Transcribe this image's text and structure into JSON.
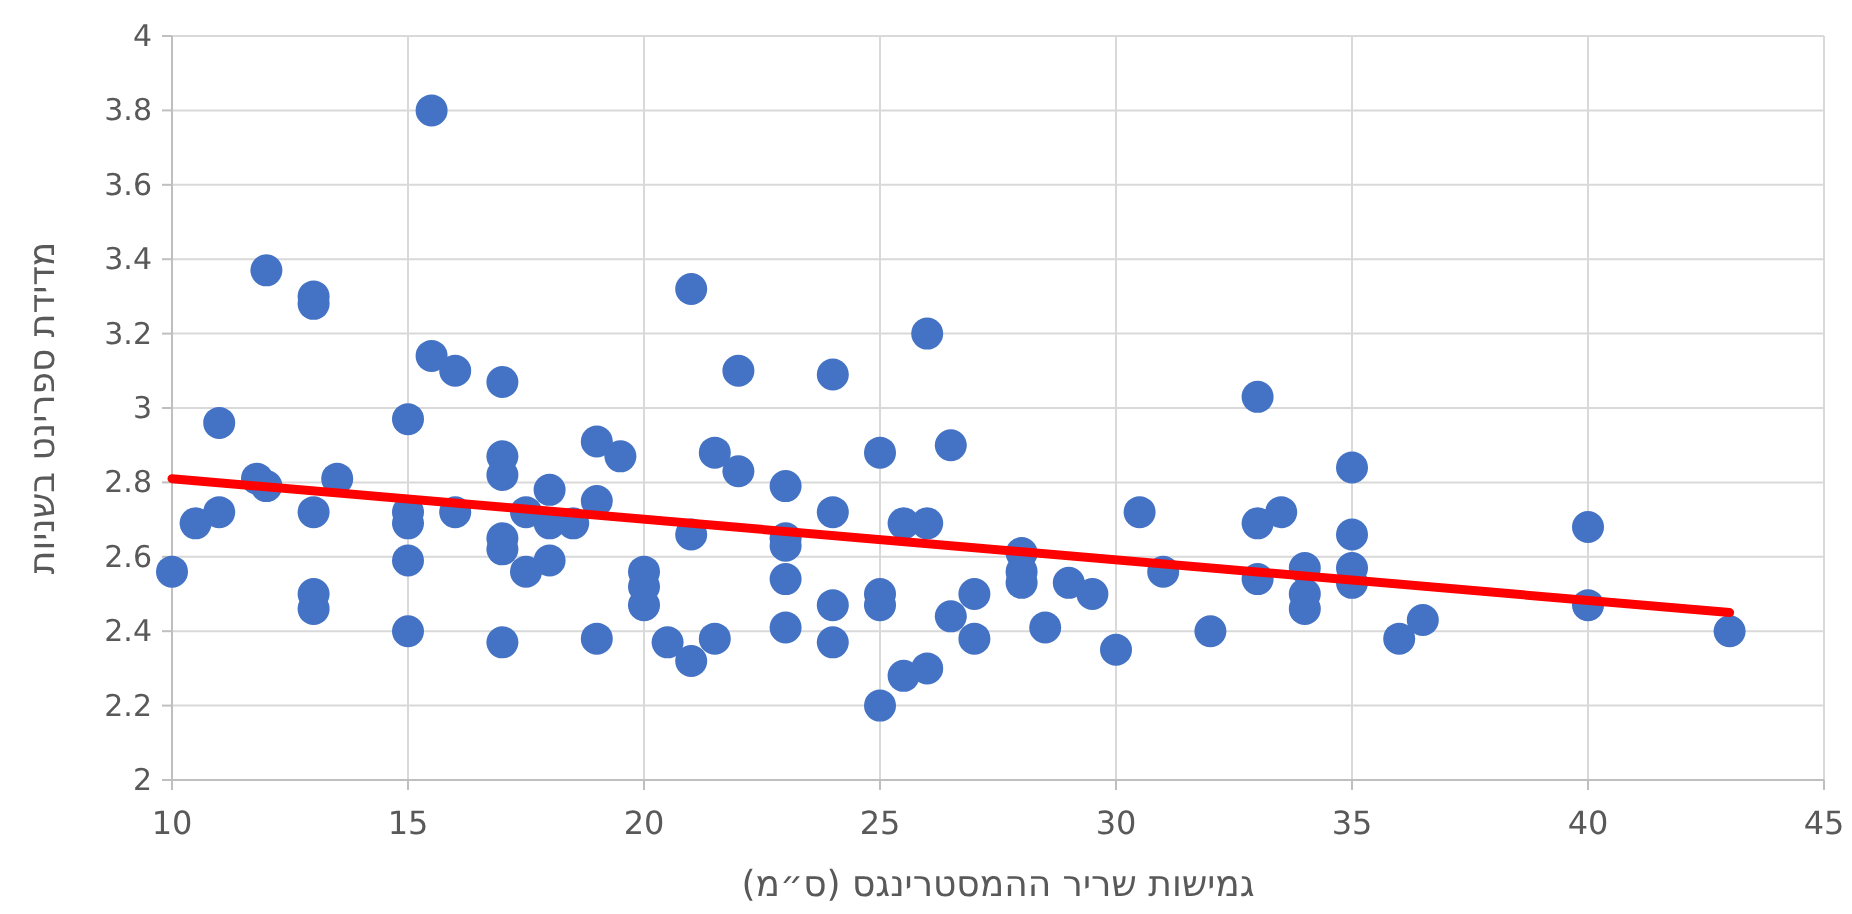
{
  "chart_data": {
    "type": "scatter",
    "xlabel": "גמישות שריר ההמסטרינגס (ס״מ)",
    "ylabel": "מדידת ספרינט בשניות",
    "xlim": [
      10,
      45
    ],
    "xticks": [
      10,
      15,
      20,
      25,
      30,
      35,
      40,
      45
    ],
    "ylim": [
      2,
      4
    ],
    "yticks": [
      2,
      2.2,
      2.4,
      2.6,
      2.8,
      3,
      3.2,
      3.4,
      3.6,
      3.8,
      4
    ],
    "grid": true,
    "series": [
      {
        "color": "#4472c4",
        "marker": "circle",
        "x": [
          10,
          10.5,
          11,
          11,
          11.8,
          12,
          12,
          13,
          13,
          13,
          13,
          13,
          13.5,
          15,
          15,
          15,
          15,
          15,
          15.5,
          15.5,
          16,
          16,
          17,
          17,
          17,
          17,
          17,
          17,
          17.5,
          17.5,
          18,
          18,
          18,
          18.5,
          19,
          19,
          19,
          19.5,
          20,
          20,
          20,
          20.5,
          21,
          21,
          21,
          21.5,
          21.5,
          22,
          22,
          23,
          23,
          23,
          23,
          23,
          24,
          24,
          24,
          24,
          25,
          25,
          25,
          25,
          25.5,
          25.5,
          26,
          26,
          26,
          26.5,
          26.5,
          27,
          27,
          28,
          28,
          28,
          28.5,
          29,
          29.5,
          30,
          30.5,
          31,
          32,
          33,
          33,
          33,
          33.5,
          34,
          34,
          34,
          35,
          35,
          35,
          35,
          36,
          36.5,
          40,
          40,
          43
        ],
        "values": [
          2.56,
          2.69,
          2.72,
          2.96,
          2.81,
          2.79,
          3.37,
          3.3,
          3.28,
          2.72,
          2.5,
          2.46,
          2.81,
          2.97,
          2.72,
          2.69,
          2.59,
          2.4,
          3.8,
          3.14,
          3.1,
          2.72,
          3.07,
          2.87,
          2.82,
          2.65,
          2.62,
          2.37,
          2.72,
          2.56,
          2.78,
          2.69,
          2.59,
          2.69,
          2.91,
          2.75,
          2.38,
          2.87,
          2.56,
          2.52,
          2.47,
          2.37,
          3.32,
          2.66,
          2.32,
          2.88,
          2.38,
          3.1,
          2.83,
          2.79,
          2.65,
          2.63,
          2.54,
          2.41,
          3.09,
          2.72,
          2.47,
          2.37,
          2.88,
          2.5,
          2.47,
          2.2,
          2.69,
          2.28,
          3.2,
          2.69,
          2.3,
          2.9,
          2.44,
          2.5,
          2.38,
          2.61,
          2.56,
          2.53,
          2.41,
          2.53,
          2.5,
          2.35,
          2.72,
          2.56,
          2.4,
          3.03,
          2.69,
          2.54,
          2.72,
          2.57,
          2.5,
          2.46,
          2.84,
          2.66,
          2.57,
          2.53,
          2.38,
          2.43,
          2.68,
          2.47,
          2.4
        ]
      },
      {
        "type": "line",
        "color": "#ff0000",
        "x": [
          10,
          43
        ],
        "values": [
          2.81,
          2.45
        ]
      }
    ]
  }
}
